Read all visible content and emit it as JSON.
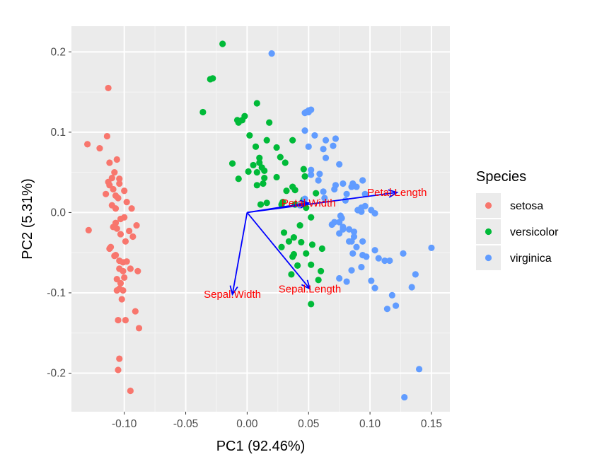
{
  "chart_data": {
    "type": "scatter",
    "title": "",
    "xlabel": "PC1 (92.46%)",
    "ylabel": "PC2 (5.31%)",
    "xlim": [
      -0.143,
      0.165
    ],
    "ylim": [
      -0.248,
      0.232
    ],
    "x_ticks": [
      -0.1,
      -0.05,
      0.0,
      0.05,
      0.1,
      0.15
    ],
    "x_tick_labels": [
      "-0.10",
      "-0.05",
      "0.00",
      "0.05",
      "0.10",
      "0.15"
    ],
    "y_ticks": [
      -0.2,
      -0.1,
      0.0,
      0.1,
      0.2
    ],
    "y_tick_labels": [
      "-0.2",
      "-0.1",
      "0.0",
      "0.1",
      "0.2"
    ],
    "grid": true,
    "legend": {
      "title": "Species",
      "position": "right",
      "entries": [
        {
          "label": "setosa",
          "color": "#F8766D"
        },
        {
          "label": "versicolor",
          "color": "#00BA38"
        },
        {
          "label": "virginica",
          "color": "#619CFF"
        }
      ]
    },
    "series": [
      {
        "name": "setosa",
        "color": "#F8766D",
        "points": [
          [
            -0.113,
            0.155
          ],
          [
            -0.114,
            0.095
          ],
          [
            -0.13,
            0.085
          ],
          [
            -0.12,
            0.08
          ],
          [
            -0.106,
            0.066
          ],
          [
            -0.112,
            0.062
          ],
          [
            -0.108,
            0.05
          ],
          [
            -0.11,
            0.043
          ],
          [
            -0.104,
            0.042
          ],
          [
            -0.113,
            0.038
          ],
          [
            -0.104,
            0.036
          ],
          [
            -0.112,
            0.034
          ],
          [
            -0.109,
            0.029
          ],
          [
            -0.1,
            0.027
          ],
          [
            -0.115,
            0.023
          ],
          [
            -0.107,
            0.021
          ],
          [
            -0.105,
            0.018
          ],
          [
            -0.098,
            0.013
          ],
          [
            -0.11,
            0.009
          ],
          [
            -0.107,
            0.005
          ],
          [
            -0.094,
            0.005
          ],
          [
            -0.1,
            -0.006
          ],
          [
            -0.103,
            -0.008
          ],
          [
            -0.107,
            -0.013
          ],
          [
            -0.09,
            -0.016
          ],
          [
            -0.109,
            -0.018
          ],
          [
            -0.106,
            -0.02
          ],
          [
            -0.129,
            -0.022
          ],
          [
            -0.096,
            -0.023
          ],
          [
            -0.103,
            -0.027
          ],
          [
            -0.093,
            -0.03
          ],
          [
            -0.099,
            -0.036
          ],
          [
            -0.111,
            -0.043
          ],
          [
            -0.112,
            -0.045
          ],
          [
            -0.107,
            -0.053
          ],
          [
            -0.108,
            -0.054
          ],
          [
            -0.104,
            -0.06
          ],
          [
            -0.098,
            -0.061
          ],
          [
            -0.101,
            -0.062
          ],
          [
            -0.104,
            -0.07
          ],
          [
            -0.101,
            -0.073
          ],
          [
            -0.095,
            -0.07
          ],
          [
            -0.089,
            -0.073
          ],
          [
            -0.1,
            -0.081
          ],
          [
            -0.106,
            -0.083
          ],
          [
            -0.103,
            -0.088
          ],
          [
            -0.104,
            -0.095
          ],
          [
            -0.106,
            -0.097
          ],
          [
            -0.101,
            -0.097
          ],
          [
            -0.102,
            -0.108
          ],
          [
            -0.091,
            -0.123
          ],
          [
            -0.105,
            -0.134
          ],
          [
            -0.099,
            -0.134
          ],
          [
            -0.088,
            -0.144
          ],
          [
            -0.104,
            -0.182
          ],
          [
            -0.105,
            -0.196
          ],
          [
            -0.095,
            -0.222
          ]
        ]
      },
      {
        "name": "versicolor",
        "color": "#00BA38",
        "points": [
          [
            -0.02,
            0.21
          ],
          [
            -0.03,
            0.166
          ],
          [
            -0.028,
            0.167
          ],
          [
            -0.036,
            0.125
          ],
          [
            0.008,
            0.136
          ],
          [
            -0.008,
            0.115
          ],
          [
            -0.002,
            0.12
          ],
          [
            -0.004,
            0.115
          ],
          [
            0.018,
            0.112
          ],
          [
            -0.007,
            0.112
          ],
          [
            0.002,
            0.096
          ],
          [
            0.016,
            0.09
          ],
          [
            0.037,
            0.09
          ],
          [
            0.007,
            0.082
          ],
          [
            -0.012,
            0.061
          ],
          [
            0.024,
            0.081
          ],
          [
            0.01,
            0.068
          ],
          [
            0.027,
            0.069
          ],
          [
            0.031,
            0.062
          ],
          [
            0.01,
            0.062
          ],
          [
            0.005,
            0.059
          ],
          [
            0.012,
            0.056
          ],
          [
            0.046,
            0.054
          ],
          [
            0.014,
            0.052
          ],
          [
            0.008,
            0.05
          ],
          [
            0.001,
            0.051
          ],
          [
            -0.007,
            0.042
          ],
          [
            0.014,
            0.043
          ],
          [
            0.024,
            0.044
          ],
          [
            0.047,
            0.045
          ],
          [
            0.008,
            0.034
          ],
          [
            0.013,
            0.036
          ],
          [
            0.032,
            0.027
          ],
          [
            0.039,
            0.028
          ],
          [
            0.037,
            0.032
          ],
          [
            0.056,
            0.024
          ],
          [
            0.016,
            0.012
          ],
          [
            0.029,
            0.013
          ],
          [
            0.039,
            0.01
          ],
          [
            0.046,
            0.016
          ],
          [
            0.048,
            0.006
          ],
          [
            0.011,
            0.01
          ],
          [
            0.028,
            0.01
          ],
          [
            0.043,
            -0.016
          ],
          [
            0.052,
            -0.006
          ],
          [
            0.03,
            -0.025
          ],
          [
            0.038,
            -0.031
          ],
          [
            0.034,
            -0.036
          ],
          [
            0.044,
            -0.037
          ],
          [
            0.028,
            -0.043
          ],
          [
            0.053,
            -0.04
          ],
          [
            0.061,
            -0.045
          ],
          [
            0.048,
            -0.051
          ],
          [
            0.038,
            -0.052
          ],
          [
            0.037,
            -0.055
          ],
          [
            0.041,
            -0.066
          ],
          [
            0.052,
            -0.065
          ],
          [
            0.06,
            -0.073
          ],
          [
            0.036,
            -0.077
          ],
          [
            0.058,
            -0.084
          ],
          [
            0.052,
            -0.114
          ]
        ]
      },
      {
        "name": "virginica",
        "color": "#619CFF",
        "points": [
          [
            0.02,
            0.198
          ],
          [
            0.052,
            0.128
          ],
          [
            0.05,
            0.125
          ],
          [
            0.05,
            0.127
          ],
          [
            0.048,
            0.125
          ],
          [
            0.047,
            0.124
          ],
          [
            0.047,
            0.102
          ],
          [
            0.055,
            0.096
          ],
          [
            0.064,
            0.09
          ],
          [
            0.072,
            0.092
          ],
          [
            0.05,
            0.082
          ],
          [
            0.062,
            0.079
          ],
          [
            0.07,
            0.083
          ],
          [
            0.064,
            0.068
          ],
          [
            0.075,
            0.06
          ],
          [
            0.052,
            0.053
          ],
          [
            0.052,
            0.047
          ],
          [
            0.059,
            0.048
          ],
          [
            0.058,
            0.04
          ],
          [
            0.072,
            0.034
          ],
          [
            0.078,
            0.036
          ],
          [
            0.086,
            0.036
          ],
          [
            0.094,
            0.04
          ],
          [
            0.085,
            0.032
          ],
          [
            0.089,
            0.032
          ],
          [
            0.062,
            0.026
          ],
          [
            0.071,
            0.029
          ],
          [
            0.081,
            0.023
          ],
          [
            0.096,
            0.023
          ],
          [
            0.063,
            0.018
          ],
          [
            0.08,
            0.015
          ],
          [
            0.047,
            0.017
          ],
          [
            0.043,
            0.009
          ],
          [
            0.09,
            0.003
          ],
          [
            0.093,
            0.006
          ],
          [
            0.096,
            0.008
          ],
          [
            0.104,
            -0.001
          ],
          [
            0.076,
            -0.004
          ],
          [
            0.101,
            0.003
          ],
          [
            0.093,
            0.001
          ],
          [
            0.077,
            -0.007
          ],
          [
            0.075,
            -0.012
          ],
          [
            0.071,
            -0.012
          ],
          [
            0.078,
            -0.018
          ],
          [
            0.069,
            -0.015
          ],
          [
            0.078,
            -0.021
          ],
          [
            0.083,
            -0.021
          ],
          [
            0.087,
            -0.024
          ],
          [
            0.075,
            -0.026
          ],
          [
            0.087,
            -0.03
          ],
          [
            0.083,
            -0.036
          ],
          [
            0.085,
            -0.036
          ],
          [
            0.094,
            -0.036
          ],
          [
            0.089,
            -0.043
          ],
          [
            0.086,
            -0.051
          ],
          [
            0.094,
            -0.053
          ],
          [
            0.104,
            -0.047
          ],
          [
            0.097,
            -0.055
          ],
          [
            0.107,
            -0.057
          ],
          [
            0.093,
            -0.068
          ],
          [
            0.085,
            -0.072
          ],
          [
            0.075,
            -0.082
          ],
          [
            0.081,
            -0.086
          ],
          [
            0.101,
            -0.085
          ],
          [
            0.112,
            -0.06
          ],
          [
            0.116,
            -0.06
          ],
          [
            0.127,
            -0.051
          ],
          [
            0.15,
            -0.044
          ],
          [
            0.137,
            -0.077
          ],
          [
            0.134,
            -0.093
          ],
          [
            0.121,
            -0.116
          ],
          [
            0.114,
            -0.12
          ],
          [
            0.104,
            -0.094
          ],
          [
            0.118,
            -0.103
          ],
          [
            0.14,
            -0.195
          ],
          [
            0.128,
            -0.23
          ]
        ]
      }
    ],
    "loadings": [
      {
        "label": "Petal.Length",
        "x": 0.122,
        "y": 0.025
      },
      {
        "label": "Petal.Width",
        "x": 0.05,
        "y": 0.012
      },
      {
        "label": "Sepal.Length",
        "x": 0.051,
        "y": -0.095
      },
      {
        "label": "Sepal.Width",
        "x": -0.012,
        "y": -0.102
      }
    ]
  }
}
